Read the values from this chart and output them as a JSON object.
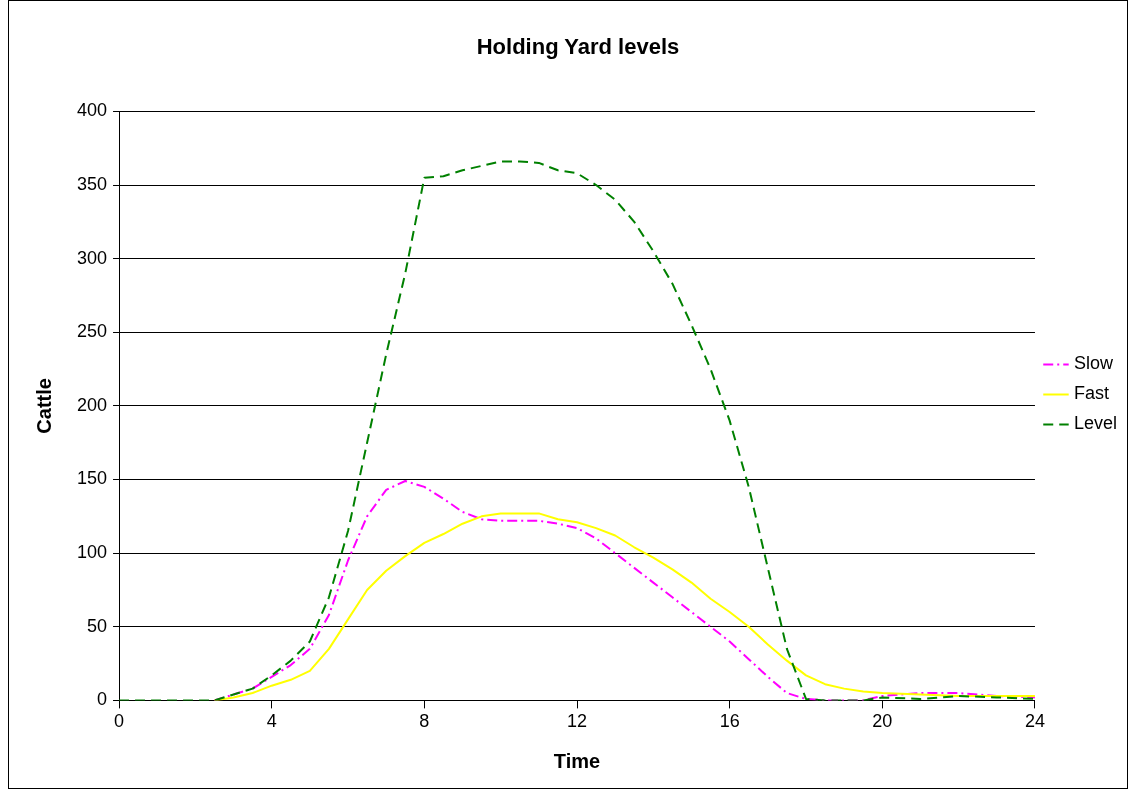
{
  "chart_data": {
    "type": "line",
    "title": "Holding Yard levels",
    "xlabel": "Time",
    "ylabel": "Cattle",
    "x": [
      0,
      0.5,
      1,
      1.5,
      2,
      2.5,
      3,
      3.5,
      4,
      4.5,
      5,
      5.5,
      6,
      6.5,
      7,
      7.5,
      8,
      8.5,
      9,
      9.5,
      10,
      10.5,
      11,
      11.5,
      12,
      12.5,
      13,
      13.5,
      14,
      14.5,
      15,
      15.5,
      16,
      16.5,
      17,
      17.5,
      18,
      18.5,
      19,
      19.5,
      20,
      21,
      22,
      23,
      24
    ],
    "series": [
      {
        "name": "Slow",
        "color": "#ff00ff",
        "line_style": "dashdot",
        "values": [
          null,
          null,
          null,
          null,
          null,
          0,
          4,
          8,
          16,
          24,
          35,
          58,
          95,
          125,
          143,
          149,
          145,
          137,
          128,
          123,
          122,
          122,
          122,
          120,
          117,
          110,
          100,
          90,
          80,
          70,
          60,
          50,
          40,
          28,
          16,
          5,
          1,
          0,
          0,
          0,
          3,
          5,
          5,
          3,
          2
        ]
      },
      {
        "name": "Fast",
        "color": "#ffff00",
        "line_style": "solid",
        "values": [
          null,
          null,
          null,
          null,
          null,
          0,
          2,
          5,
          10,
          14,
          20,
          35,
          55,
          75,
          88,
          98,
          107,
          113,
          120,
          125,
          127,
          127,
          127,
          123,
          121,
          117,
          112,
          104,
          97,
          89,
          80,
          69,
          60,
          50,
          38,
          27,
          17,
          11,
          8,
          6,
          5,
          4,
          3,
          3,
          3
        ]
      },
      {
        "name": "Level",
        "color": "#008000",
        "line_style": "dashed",
        "values": [
          0,
          0,
          0,
          0,
          0,
          0,
          4,
          8,
          17,
          27,
          40,
          70,
          115,
          175,
          235,
          290,
          355,
          356,
          360,
          363,
          366,
          366,
          365,
          360,
          358,
          350,
          340,
          325,
          305,
          283,
          255,
          225,
          190,
          145,
          90,
          35,
          1,
          0,
          0,
          0,
          2,
          1,
          3,
          2,
          1
        ]
      }
    ],
    "xlim": [
      0,
      24
    ],
    "xticks": [
      0,
      4,
      8,
      12,
      16,
      20,
      24
    ],
    "ylim": [
      0,
      400
    ],
    "yticks": [
      0,
      50,
      100,
      150,
      200,
      250,
      300,
      350,
      400
    ],
    "grid": "y",
    "legend": "right",
    "marker": "none"
  }
}
